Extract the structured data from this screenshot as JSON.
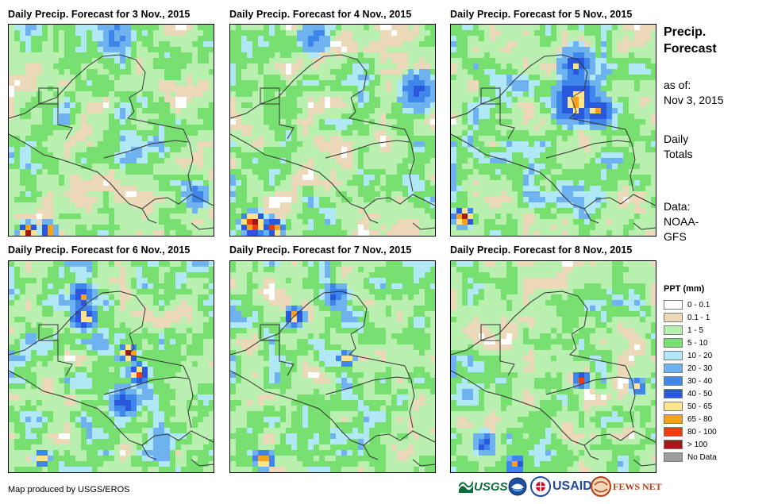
{
  "panels": [
    {
      "title": "Daily Precip. Forecast for 3 Nov., 2015"
    },
    {
      "title": "Daily Precip. Forecast for 4 Nov., 2015"
    },
    {
      "title": "Daily Precip. Forecast for 5 Nov., 2015"
    },
    {
      "title": "Daily Precip. Forecast for 6 Nov., 2015"
    },
    {
      "title": "Daily Precip. Forecast for 7 Nov., 2015"
    },
    {
      "title": "Daily Precip. Forecast for 8 Nov., 2015"
    }
  ],
  "side": {
    "title_line1": "Precip.",
    "title_line2": "Forecast",
    "asof_line1": "as of:",
    "asof_line2": "Nov 3, 2015",
    "totals_line1": "Daily",
    "totals_line2": "Totals",
    "data_line1": "Data:",
    "data_line2": "NOAA-",
    "data_line3": "GFS"
  },
  "legend": {
    "title": "PPT (mm)",
    "items": [
      {
        "label": "0 - 0.1",
        "color": "#ffffff"
      },
      {
        "label": "0.1 - 1",
        "color": "#ecd9b9"
      },
      {
        "label": "1 - 5",
        "color": "#b9f0b0"
      },
      {
        "label": "5 - 10",
        "color": "#78e070"
      },
      {
        "label": "10 - 20",
        "color": "#b0e8f6"
      },
      {
        "label": "20 - 30",
        "color": "#6fb2f0"
      },
      {
        "label": "30 - 40",
        "color": "#3f86ea"
      },
      {
        "label": "40 - 50",
        "color": "#2a58dc"
      },
      {
        "label": "50 - 65",
        "color": "#fde48a"
      },
      {
        "label": "65 - 80",
        "color": "#f7a21a"
      },
      {
        "label": "80 - 100",
        "color": "#f03c0a"
      },
      {
        "label": "> 100",
        "color": "#a51818"
      },
      {
        "label": "No Data",
        "color": "#9c9c9c"
      }
    ]
  },
  "footer": {
    "credit": "Map produced by USGS/EROS",
    "logo_usgs": "USGS",
    "logo_usaid": "USAID",
    "logo_fewsnet": "FEWS NET"
  }
}
